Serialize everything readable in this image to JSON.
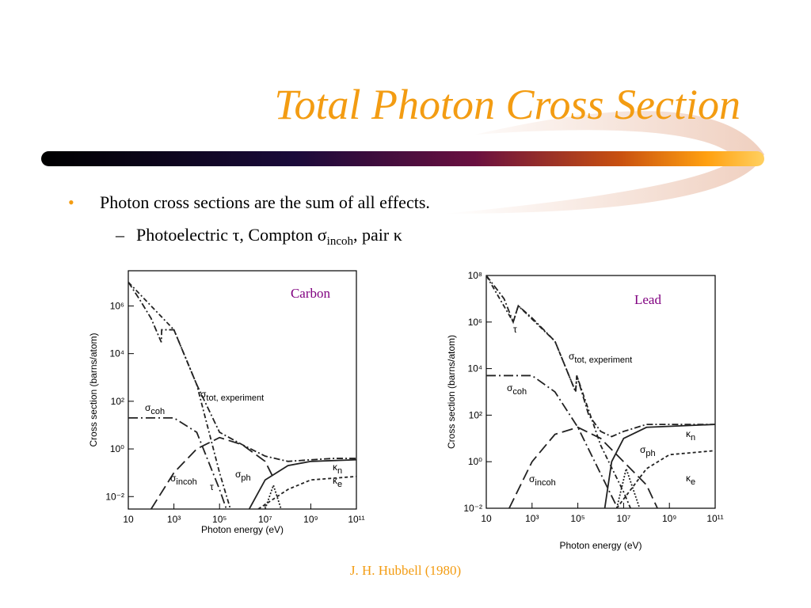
{
  "slide": {
    "title": "Total Photon Cross Section",
    "bullets": [
      {
        "parts": [
          "Photon cross sections are the sum of all effects."
        ]
      },
      {
        "parts": [
          "Photoelectric τ, Compton σ",
          "incoh",
          ", pair κ"
        ]
      }
    ],
    "citation": "J. H. Hubbell (1980)"
  },
  "chart_data": [
    {
      "type": "line",
      "title": "Carbon",
      "xlabel": "Photon energy (eV)",
      "ylabel": "Cross section (barns/atom)",
      "log_x": true,
      "log_y": true,
      "xlim": [
        10,
        100000000000
      ],
      "xticks": [
        10,
        {
          "value": 1000,
          "label": "10³"
        },
        {
          "value": 100000,
          "label": "10⁵"
        },
        {
          "value": 10000000,
          "label": "10⁷"
        },
        {
          "value": 1000000000,
          "label": "10⁹"
        },
        {
          "value": 100000000000,
          "label": "10¹¹"
        }
      ],
      "ylim": [
        0.003,
        30000000
      ],
      "yticks": [
        {
          "value": 0.01,
          "label": "10⁻²"
        },
        {
          "value": 1,
          "label": "10⁰"
        },
        {
          "value": 100,
          "label": "10²"
        },
        {
          "value": 10000,
          "label": "10⁴"
        },
        {
          "value": 1000000,
          "label": "10⁶"
        }
      ],
      "series": [
        {
          "name": "σ",
          "sub": "tot, experiment",
          "color": "#222",
          "dash": "8,3,2,3",
          "x": [
            10,
            30,
            100,
            280,
            290,
            1000,
            10000,
            100000,
            1000000,
            10000000,
            100000000,
            1000000000,
            10000000000,
            100000000000
          ],
          "values": [
            10000000,
            2000000,
            300000,
            30000,
            100000,
            100000,
            500,
            5,
            1.5,
            0.5,
            0.3,
            0.35,
            0.4,
            0.4
          ]
        },
        {
          "name": "σ",
          "sub": "coh",
          "color": "#222",
          "dash": "12,4,2,4",
          "x": [
            10,
            1000,
            10000,
            100000,
            200000
          ],
          "values": [
            20,
            20,
            5,
            0.02,
            0.003
          ]
        },
        {
          "name": "σ",
          "sub": "incoh",
          "color": "#222",
          "dash": "14,6",
          "x": [
            100,
            1000,
            10000,
            100000,
            1000000,
            10000000,
            20000000
          ],
          "values": [
            0.003,
            0.1,
            1,
            3,
            1.5,
            0.3,
            0.08
          ]
        },
        {
          "name": "τ",
          "color": "#222",
          "dash": "6,3,2,3",
          "x": [
            10,
            1000,
            10000,
            100000,
            300000
          ],
          "values": [
            10000000,
            100000,
            500,
            0.1,
            0.003
          ]
        },
        {
          "name": "σ",
          "sub": "ph",
          "color": "#222",
          "dash": "2,2",
          "x": [
            10000000,
            23000000,
            50000000
          ],
          "values": [
            0.003,
            0.03,
            0.003
          ]
        },
        {
          "name": "κ",
          "sub": "n",
          "color": "#222",
          "dash": "",
          "x": [
            2000000,
            10000000,
            100000000,
            1000000000,
            100000000000
          ],
          "values": [
            0.003,
            0.05,
            0.2,
            0.3,
            0.35
          ]
        },
        {
          "name": "κ",
          "sub": "e",
          "color": "#222",
          "dash": "4,3",
          "x": [
            5000000,
            100000000,
            1000000000,
            100000000000
          ],
          "values": [
            0.003,
            0.02,
            0.05,
            0.07
          ]
        }
      ]
    },
    {
      "type": "line",
      "title": "Lead",
      "xlabel": "Photon energy (eV)",
      "ylabel": "Cross section (barns/atom)",
      "log_x": true,
      "log_y": true,
      "xlim": [
        10,
        100000000000
      ],
      "xticks": [
        10,
        {
          "value": 1000,
          "label": "10³"
        },
        {
          "value": 100000,
          "label": "10⁵"
        },
        {
          "value": 10000000,
          "label": "10⁷"
        },
        {
          "value": 1000000000,
          "label": "10⁹"
        },
        {
          "value": 100000000000,
          "label": "10¹¹"
        }
      ],
      "ylim": [
        0.01,
        100000000
      ],
      "yticks": [
        {
          "value": 0.01,
          "label": "10⁻²"
        },
        {
          "value": 1,
          "label": "10⁰"
        },
        {
          "value": 100,
          "label": "10²"
        },
        {
          "value": 10000,
          "label": "10⁴"
        },
        {
          "value": 1000000,
          "label": "10⁶"
        },
        {
          "value": 100000000,
          "label": "10⁸"
        }
      ],
      "series": [
        {
          "name": "σ",
          "sub": "tot, experiment",
          "color": "#222",
          "dash": "8,3,2,3",
          "x": [
            10,
            60,
            150,
            250,
            1000,
            10000,
            80000,
            90000,
            300000,
            1000000,
            3000000,
            10000000,
            100000000,
            100000000000
          ],
          "values": [
            100000000,
            10000000,
            1000000,
            5000000,
            1500000,
            150000,
            1000,
            5000,
            100,
            20,
            12,
            20,
            40,
            40
          ]
        },
        {
          "name": "σ",
          "sub": "coh",
          "color": "#222",
          "dash": "12,4,2,4",
          "x": [
            10,
            1000,
            10000,
            100000,
            1000000,
            10000000
          ],
          "values": [
            5000,
            5000,
            1000,
            30,
            0.3,
            0.003
          ]
        },
        {
          "name": "σ",
          "sub": "incoh",
          "color": "#222",
          "dash": "14,6",
          "x": [
            100,
            1000,
            10000,
            100000,
            1000000,
            10000000,
            100000000,
            300000000
          ],
          "values": [
            0.01,
            1,
            15,
            30,
            10,
            1,
            0.1,
            0.01
          ]
        },
        {
          "name": "τ",
          "color": "#222",
          "dash": "6,3,2,3",
          "x": [
            10,
            150,
            250,
            10000,
            80000,
            90000,
            1000000,
            10000000,
            20000000
          ],
          "values": [
            100000000,
            1000000,
            5000000,
            150000,
            1000,
            5000,
            5,
            0.05,
            0.01
          ]
        },
        {
          "name": "σ",
          "sub": "ph",
          "color": "#222",
          "dash": "2,2",
          "x": [
            5000000,
            13000000,
            50000000
          ],
          "values": [
            0.01,
            0.5,
            0.01
          ]
        },
        {
          "name": "κ",
          "sub": "n",
          "color": "#222",
          "dash": "",
          "x": [
            1500000,
            3000000,
            10000000,
            100000000,
            100000000000
          ],
          "values": [
            0.01,
            1,
            10,
            30,
            40
          ]
        },
        {
          "name": "κ",
          "sub": "e",
          "color": "#222",
          "dash": "4,3",
          "x": [
            5000000,
            100000000,
            1000000000,
            100000000000
          ],
          "values": [
            0.01,
            0.5,
            2,
            3
          ]
        }
      ]
    }
  ]
}
